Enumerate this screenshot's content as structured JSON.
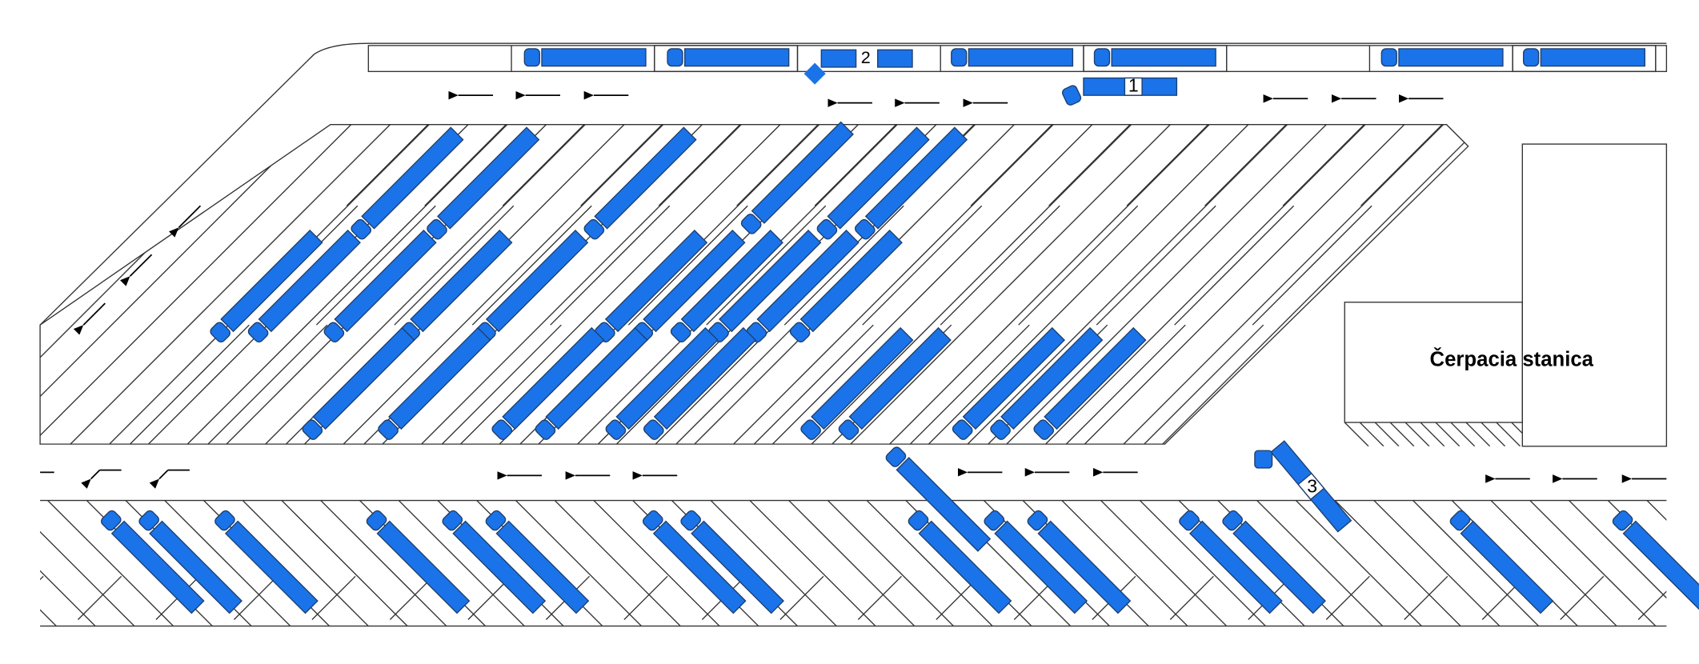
{
  "station": {
    "label": "Čerpacia stanica"
  },
  "markers": [
    "1",
    "2",
    "3"
  ]
}
